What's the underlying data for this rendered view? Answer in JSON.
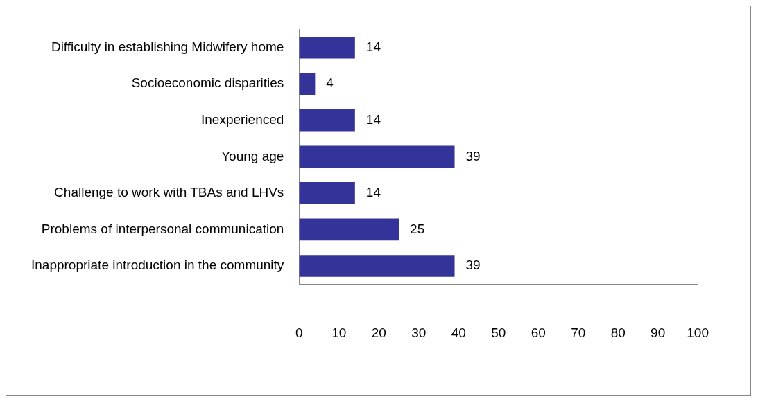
{
  "chart_data": {
    "type": "bar",
    "orientation": "horizontal",
    "categories": [
      "Difficulty in establishing Midwifery home",
      "Socioeconomic disparities",
      "Inexperienced",
      "Young age",
      "Challenge to work with TBAs and LHVs",
      "Problems of interpersonal communication",
      "Inappropriate introduction in the community"
    ],
    "values": [
      14,
      4,
      14,
      39,
      14,
      25,
      39
    ],
    "color": "#333399",
    "xlim": [
      0,
      100
    ],
    "xticks": [
      0,
      10,
      20,
      30,
      40,
      50,
      60,
      70,
      80,
      90,
      100
    ],
    "grid": false,
    "legend": false,
    "data_labels": true
  }
}
